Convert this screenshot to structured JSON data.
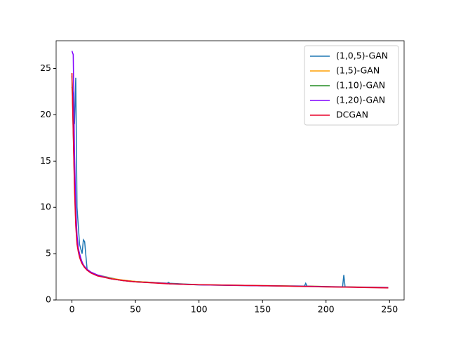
{
  "chart_data": {
    "type": "line",
    "x": [
      0,
      1,
      2,
      3,
      4,
      5,
      6,
      7,
      8,
      9,
      10,
      12,
      15,
      20,
      30,
      40,
      50,
      75,
      76,
      77,
      100,
      150,
      183,
      184,
      185,
      200,
      213,
      214,
      215,
      249
    ],
    "series": [
      {
        "name": "(1,0,5)-GAN",
        "color": "#1f77b4",
        "values": [
          23,
          22,
          19,
          24,
          10,
          8,
          6,
          5.5,
          5,
          6.5,
          6.3,
          3.2,
          3.0,
          2.7,
          2.4,
          2.1,
          2.0,
          1.8,
          1.9,
          1.8,
          1.65,
          1.55,
          1.5,
          1.8,
          1.5,
          1.45,
          1.4,
          2.7,
          1.4,
          1.35
        ]
      },
      {
        "name": "(1,5)-GAN",
        "color": "#ff9f00",
        "values": [
          24.5,
          19,
          13,
          9,
          6.5,
          5.5,
          5,
          4.5,
          4.1,
          3.8,
          3.6,
          3.3,
          3.0,
          2.7,
          2.35,
          2.15,
          2.0,
          1.8,
          1.8,
          1.75,
          1.65,
          1.55,
          1.5,
          1.5,
          1.5,
          1.45,
          1.42,
          1.42,
          1.42,
          1.35
        ]
      },
      {
        "name": "(1,10)-GAN",
        "color": "#228b22",
        "values": [
          24.2,
          18.5,
          12.5,
          8.5,
          6.2,
          5.3,
          4.8,
          4.4,
          4.0,
          3.7,
          3.5,
          3.25,
          2.95,
          2.65,
          2.3,
          2.1,
          1.95,
          1.78,
          1.78,
          1.74,
          1.63,
          1.53,
          1.48,
          1.48,
          1.48,
          1.43,
          1.4,
          1.4,
          1.4,
          1.33
        ]
      },
      {
        "name": "(1,20)-GAN",
        "color": "#8000ff",
        "values": [
          26.9,
          26.5,
          16,
          10,
          7,
          5.6,
          5.0,
          4.5,
          4.1,
          3.8,
          3.6,
          3.3,
          3.0,
          2.7,
          2.3,
          2.1,
          1.95,
          1.78,
          1.78,
          1.74,
          1.63,
          1.53,
          1.48,
          1.48,
          1.48,
          1.43,
          1.4,
          1.4,
          1.4,
          1.33
        ]
      },
      {
        "name": "DCGAN",
        "color": "#e8002a",
        "values": [
          24.5,
          18,
          12,
          8,
          6,
          5.2,
          4.6,
          4.2,
          3.9,
          3.7,
          3.5,
          3.2,
          2.9,
          2.6,
          2.3,
          2.1,
          1.95,
          1.75,
          1.75,
          1.75,
          1.65,
          1.55,
          1.45,
          1.45,
          1.45,
          1.4,
          1.38,
          1.38,
          1.38,
          1.3
        ]
      }
    ],
    "xlim": [
      -12.45,
      261.45
    ],
    "xticks": [
      0,
      50,
      100,
      150,
      200,
      250
    ],
    "ylim": [
      0,
      28
    ],
    "yticks": [
      0,
      5,
      10,
      15,
      20,
      25
    ],
    "grid": false,
    "legend": "upper right"
  }
}
